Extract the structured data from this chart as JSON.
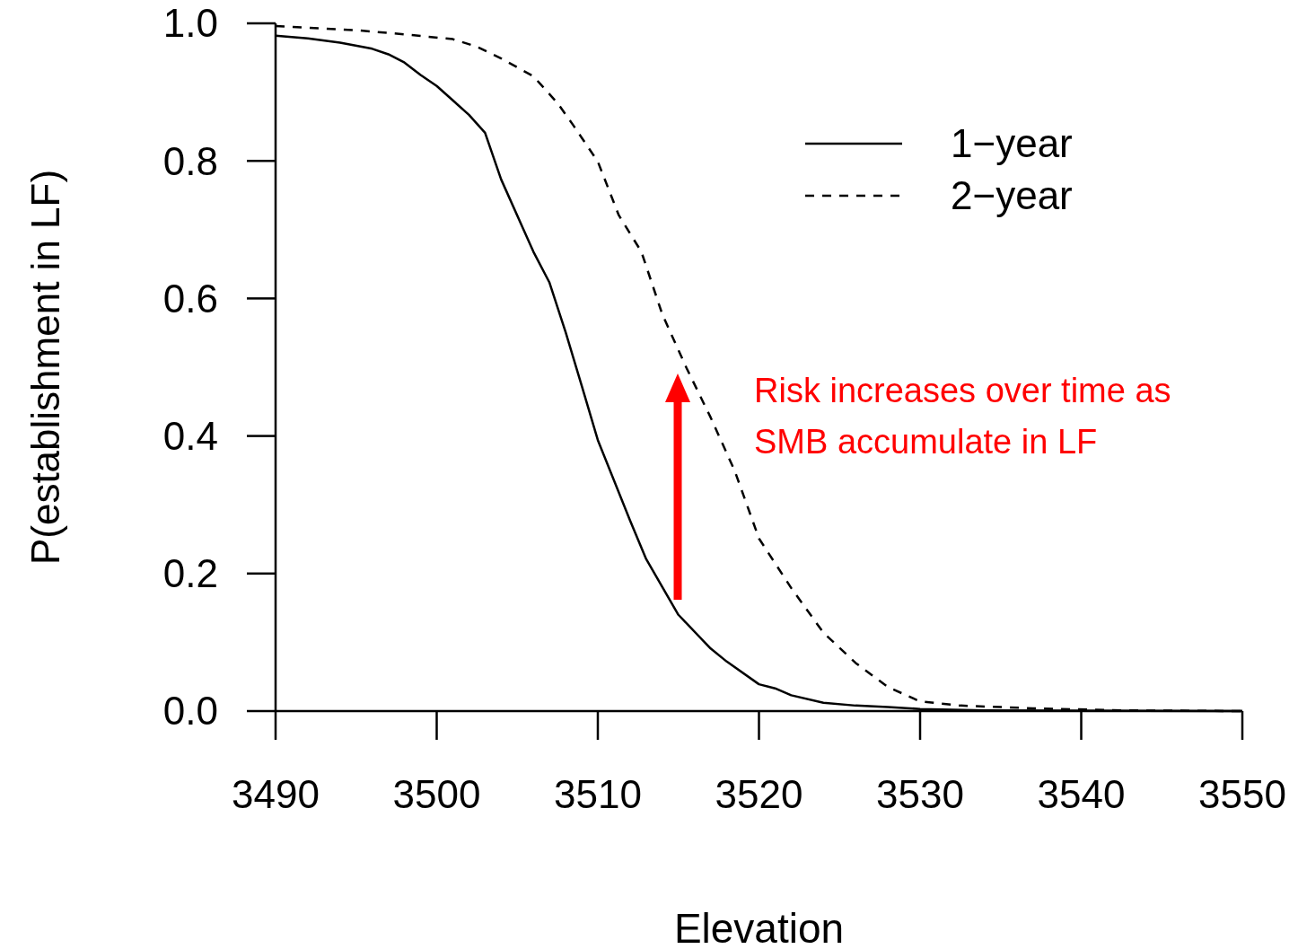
{
  "chart_data": {
    "type": "line",
    "xlabel": "Elevation",
    "ylabel": "P(establishment in LF)",
    "xlim": [
      3490,
      3550
    ],
    "xticks": [
      3490,
      3500,
      3510,
      3520,
      3530,
      3540,
      3550
    ],
    "ylim": [
      0,
      1
    ],
    "yticks": [
      {
        "value": 0,
        "label": "0.0"
      },
      {
        "value": 0.2,
        "label": "0.2"
      },
      {
        "value": 0.4,
        "label": "0.4"
      },
      {
        "value": 0.6,
        "label": "0.6"
      },
      {
        "value": 0.8,
        "label": "0.8"
      },
      {
        "value": 1,
        "label": "1.0"
      }
    ],
    "grid": false,
    "legend": "top right",
    "annotations": [
      "Risk increases over time as\nSMB accumulate in LF"
    ],
    "series": [
      {
        "name": "1−year",
        "color": "#000000",
        "line_style": "solid",
        "x": [
          3490,
          3492,
          3494,
          3496,
          3497,
          3498,
          3499,
          3500,
          3501,
          3502,
          3503,
          3504,
          3506,
          3507,
          3508,
          3509,
          3510,
          3512,
          3513,
          3515,
          3517,
          3518,
          3520,
          3521,
          3522,
          3524,
          3526,
          3528,
          3530,
          3534,
          3550
        ],
        "values": [
          0.982,
          0.978,
          0.972,
          0.963,
          0.955,
          0.943,
          0.925,
          0.909,
          0.888,
          0.867,
          0.841,
          0.773,
          0.668,
          0.623,
          0.551,
          0.473,
          0.394,
          0.277,
          0.221,
          0.14,
          0.091,
          0.072,
          0.039,
          0.033,
          0.023,
          0.012,
          0.008,
          0.006,
          0.003,
          0.001,
          0
        ]
      },
      {
        "name": "2−year",
        "color": "#000000",
        "line_style": "dashed",
        "x": [
          3490,
          3495,
          3498,
          3501,
          3502.5,
          3504,
          3506,
          3507.5,
          3508.5,
          3510,
          3511.3,
          3512.7,
          3514,
          3515.5,
          3517,
          3518.5,
          3520,
          3522,
          3524,
          3526,
          3528,
          3530,
          3532.5,
          3537,
          3542.5,
          3550
        ],
        "values": [
          0.996,
          0.99,
          0.984,
          0.977,
          0.966,
          0.949,
          0.923,
          0.884,
          0.851,
          0.799,
          0.721,
          0.668,
          0.577,
          0.499,
          0.427,
          0.349,
          0.251,
          0.179,
          0.114,
          0.07,
          0.035,
          0.014,
          0.008,
          0.004,
          0.001,
          0
        ]
      }
    ]
  }
}
